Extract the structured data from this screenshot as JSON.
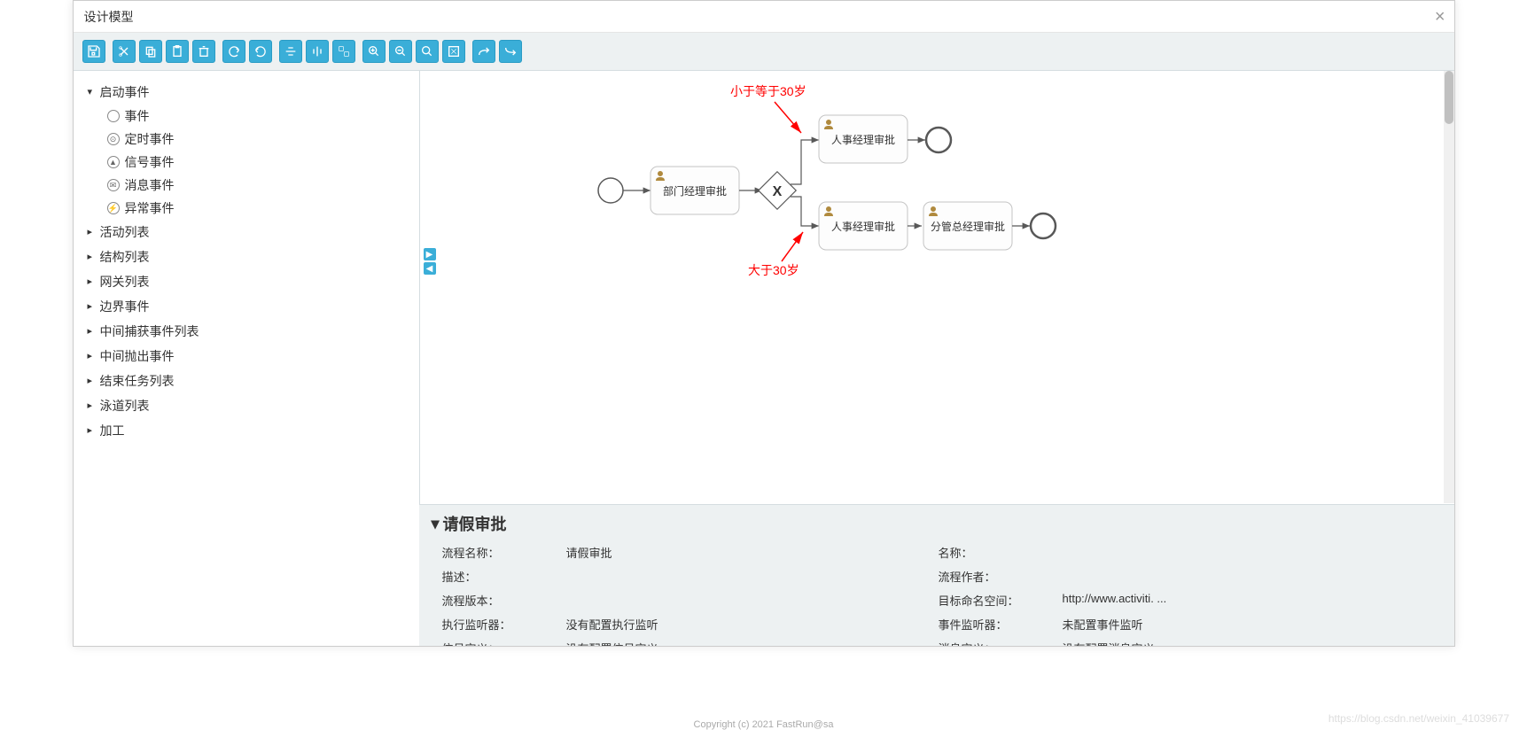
{
  "dialog": {
    "title": "设计模型"
  },
  "toolbar": {
    "groups": [
      [
        "save"
      ],
      [
        "cut",
        "copy",
        "paste",
        "delete"
      ],
      [
        "redo",
        "undo"
      ],
      [
        "align-h",
        "align-v",
        "same-size"
      ],
      [
        "zoom-in",
        "zoom-out",
        "zoom-fit",
        "zoom-actual"
      ],
      [
        "bend1",
        "bend2"
      ]
    ]
  },
  "sidebar": {
    "groups": [
      {
        "label": "启动事件",
        "expanded": true,
        "children": [
          {
            "label": "事件",
            "icon": "○"
          },
          {
            "label": "定时事件",
            "icon": "⊙"
          },
          {
            "label": "信号事件",
            "icon": "◬"
          },
          {
            "label": "消息事件",
            "icon": "✉"
          },
          {
            "label": "异常事件",
            "icon": "⚡"
          }
        ]
      },
      {
        "label": "活动列表",
        "expanded": false
      },
      {
        "label": "结构列表",
        "expanded": false
      },
      {
        "label": "网关列表",
        "expanded": false
      },
      {
        "label": "边界事件",
        "expanded": false
      },
      {
        "label": "中间捕获事件列表",
        "expanded": false
      },
      {
        "label": "中间抛出事件",
        "expanded": false
      },
      {
        "label": "结束任务列表",
        "expanded": false
      },
      {
        "label": "泳道列表",
        "expanded": false
      },
      {
        "label": "加工",
        "expanded": false
      }
    ]
  },
  "diagram": {
    "annotations": {
      "top": "小于等于30岁",
      "bottom": "大于30岁"
    },
    "tasks": {
      "t1": "部门经理审批",
      "t2": "人事经理审批",
      "t3": "人事经理审批",
      "t4": "分管总经理审批"
    },
    "gateway_symbol": "X",
    "colors": {
      "task_fill": "#fdfdfd",
      "task_stroke": "#c4c4c4",
      "edge": "#585858",
      "annotation": "#ff0000",
      "user_icon": "#b08a3e",
      "button_bg": "#3aaed8",
      "panel_bg": "#edf1f2"
    }
  },
  "props": {
    "title": "请假审批",
    "rows": [
      {
        "l1": "流程名称：",
        "v1": "请假审批",
        "l2": "名称：",
        "v2": ""
      },
      {
        "l1": "描述：",
        "v1": "",
        "l2": "流程作者：",
        "v2": ""
      },
      {
        "l1": "流程版本：",
        "v1": "",
        "l2": "目标命名空间：",
        "v2": "http://www.activiti. ..."
      },
      {
        "l1": "执行监听器：",
        "v1": "没有配置执行监听",
        "l2": "事件监听器：",
        "v2": "未配置事件监听"
      },
      {
        "l1": "信号定义：",
        "v1": "没有配置信号定义",
        "l2": "消息定义：",
        "v2": "没有配置消息定义"
      }
    ]
  },
  "footer": "Copyright (c) 2021 FastRun@sa",
  "watermark": "https://blog.csdn.net/weixin_41039677"
}
